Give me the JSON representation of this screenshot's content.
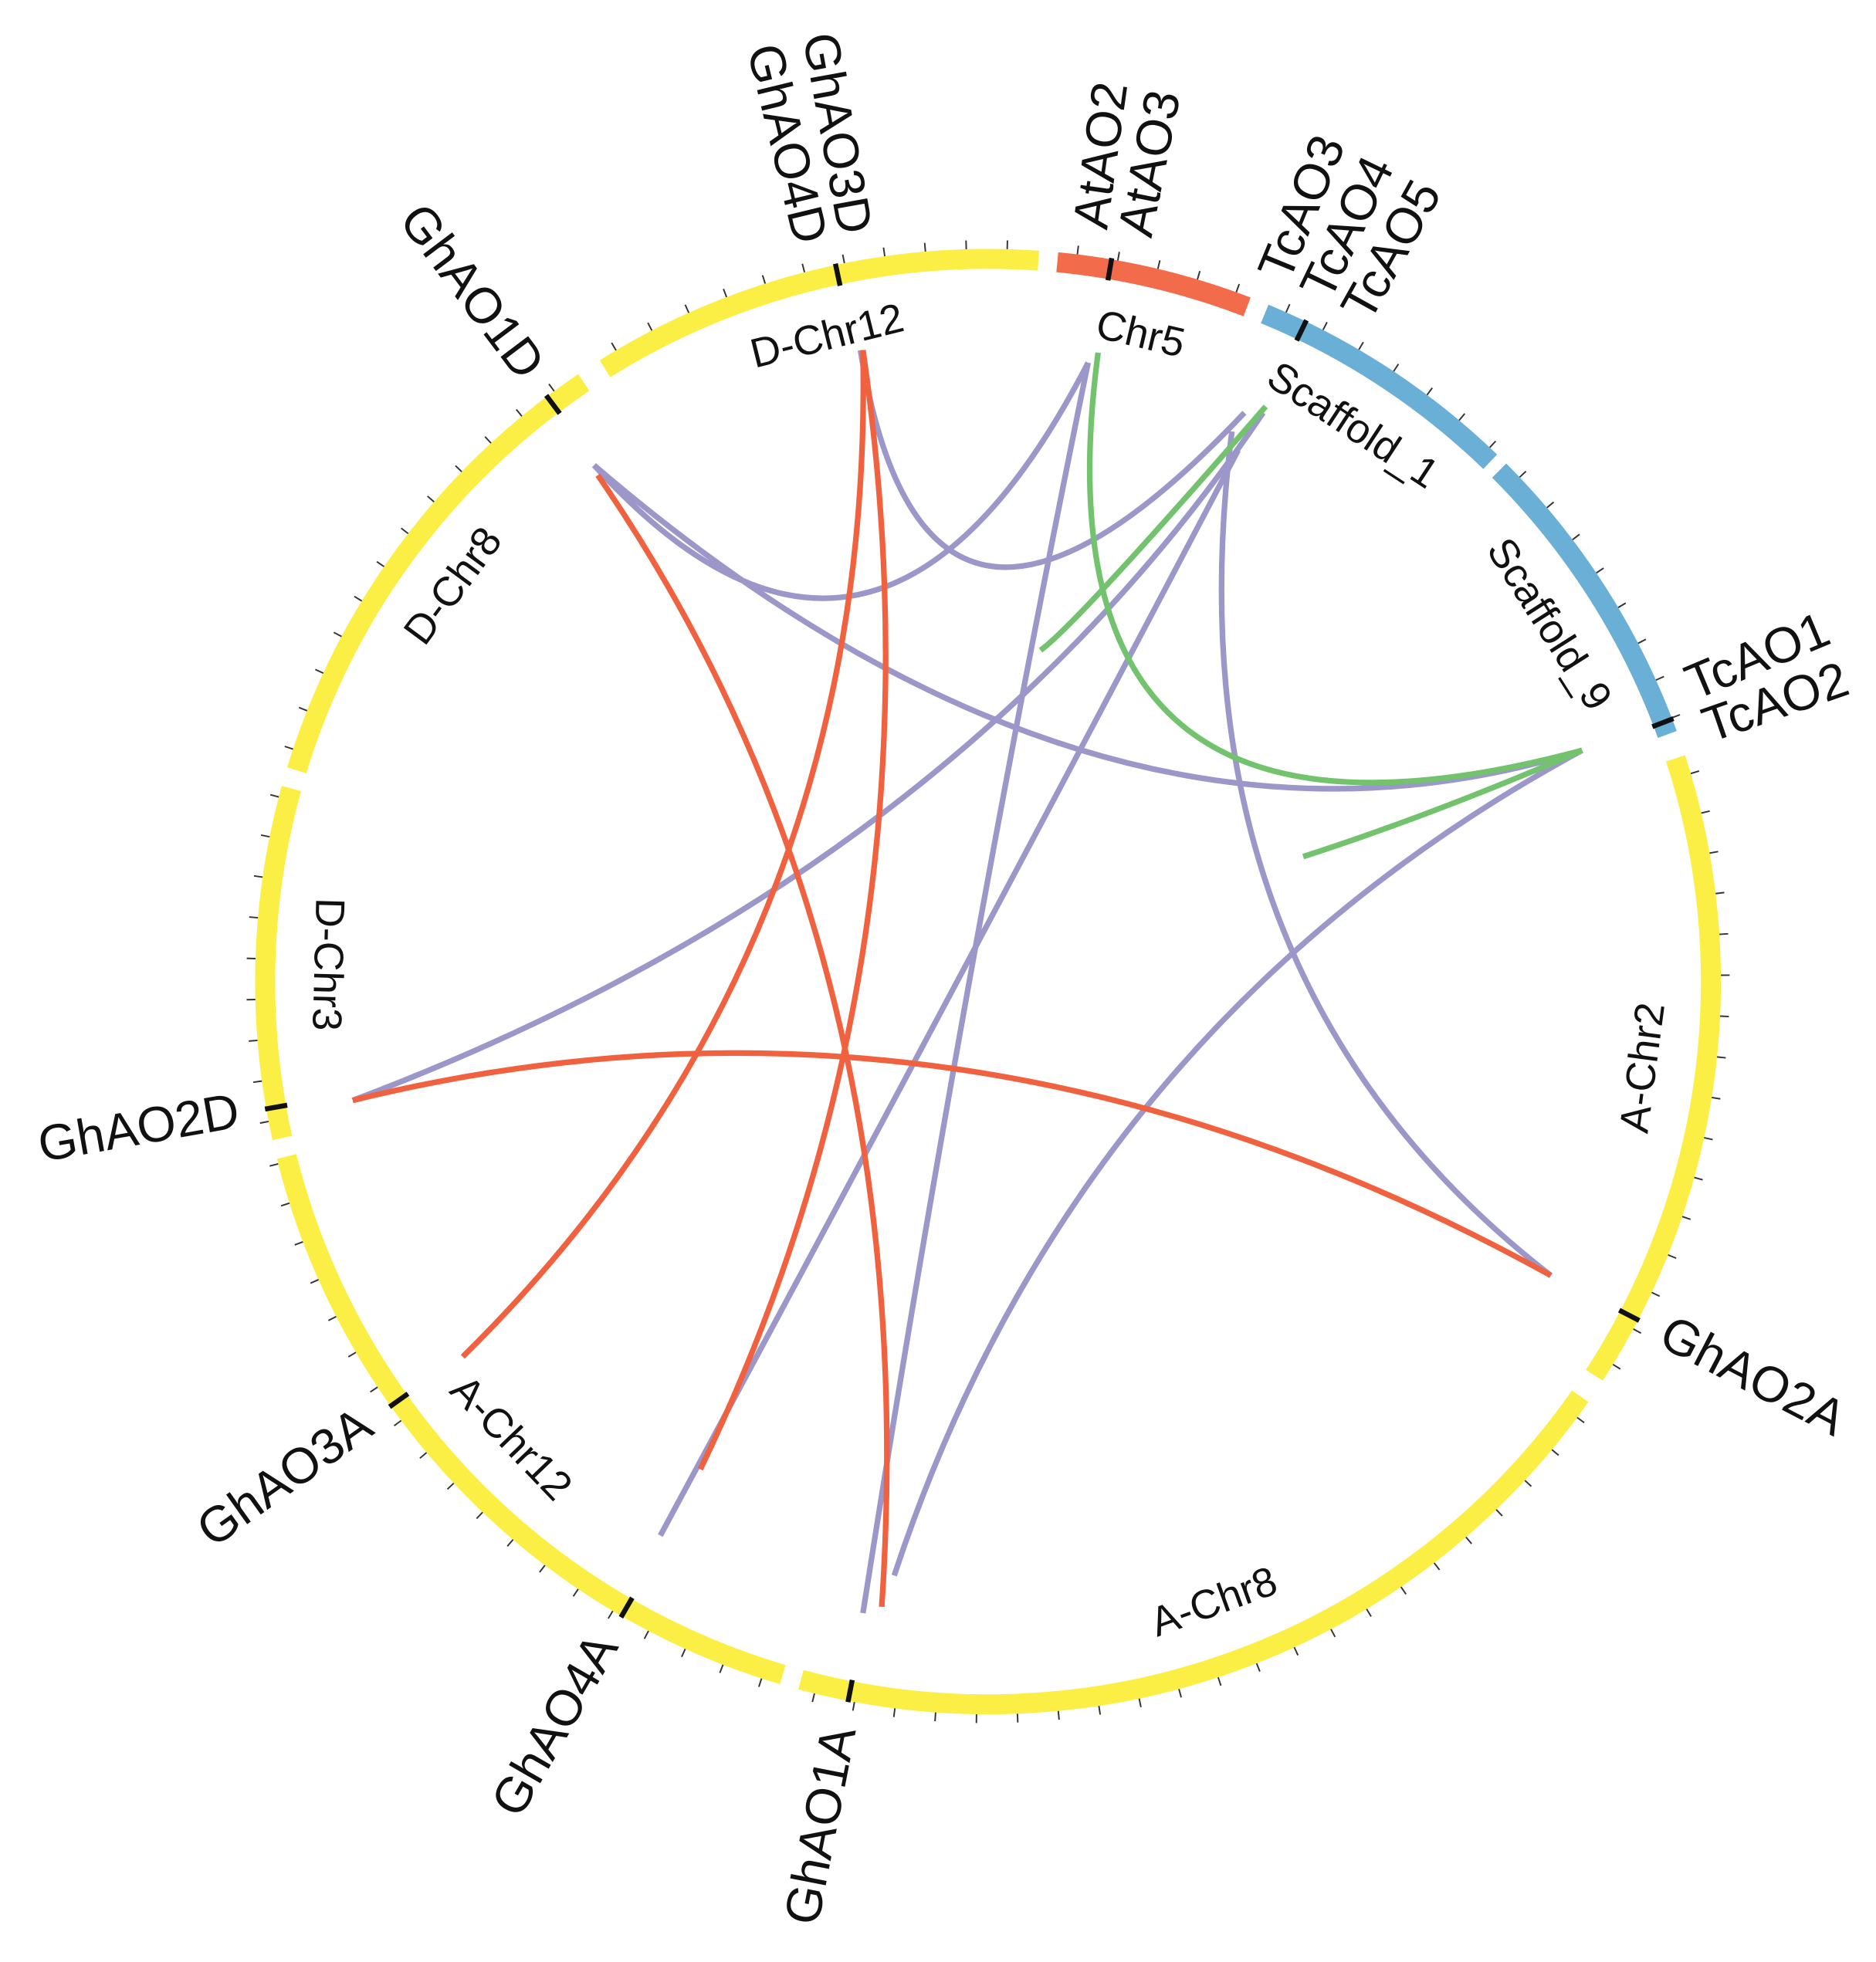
{
  "chromosomes": [
    {
      "label": "Chr5"
    },
    {
      "label": "Scaffold_1"
    },
    {
      "label": "Scaffold_9"
    },
    {
      "label": "A-Chr2"
    },
    {
      "label": "A-Chr8"
    },
    {
      "label": "A-Chr12"
    },
    {
      "label": "D-Chr3"
    },
    {
      "label": "D-Chr8"
    },
    {
      "label": "D-Chr12"
    }
  ],
  "genes": [
    {
      "labels": [
        "AtAO2",
        "AtAO3"
      ]
    },
    {
      "labels": [
        "TcAO3",
        "TcAO4",
        "TcAO5"
      ]
    },
    {
      "labels": [
        "TcAO1",
        "TcAO2"
      ]
    },
    {
      "labels": [
        "GhAO2A"
      ]
    },
    {
      "labels": [
        "GhAO1A"
      ]
    },
    {
      "labels": [
        "GhAO4A"
      ]
    },
    {
      "labels": [
        "GhAO3A"
      ]
    },
    {
      "labels": [
        "GhAO2D"
      ]
    },
    {
      "labels": [
        "GhAO1D"
      ]
    },
    {
      "labels": [
        "GhAO3D",
        "GhAO4D"
      ]
    }
  ]
}
